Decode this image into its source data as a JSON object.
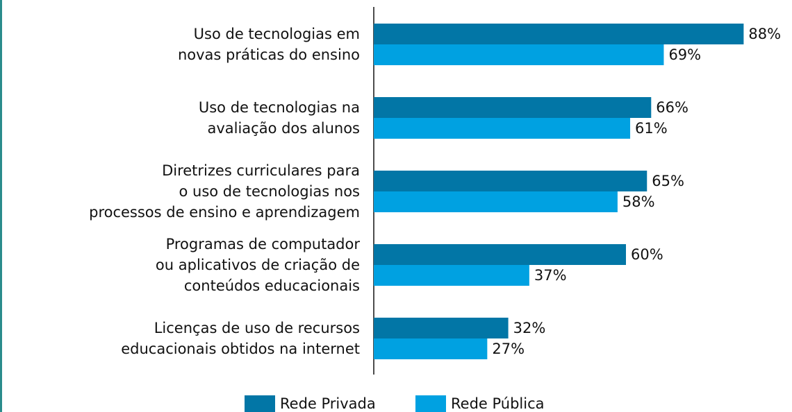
{
  "chart_data": {
    "type": "barh",
    "categories": [
      "Uso de tecnologias em \nnovas práticas do ensino",
      "Uso de tecnologias na\navaliação dos alunos",
      "Diretrizes curriculares para\no uso de tecnologias nos\nprocessos de ensino e aprendizagem",
      "Programas de computador\nou aplicativos de criação de\nconteúdos educacionais",
      "Licenças de uso de recursos\neducacionais obtidos na internet"
    ],
    "series": [
      {
        "name": "Rede Privada",
        "color": "#0276a6",
        "values": [
          88,
          66,
          65,
          60,
          32
        ],
        "value_labels": [
          "88%",
          "66%",
          "65%",
          "60%",
          "32%"
        ]
      },
      {
        "name": "Rede Pública",
        "color": "#00a1e1",
        "values": [
          69,
          61,
          58,
          37,
          27
        ],
        "value_labels": [
          "69%",
          "61%",
          "58%",
          "37%",
          "27%"
        ]
      }
    ],
    "legend": "bottom"
  }
}
